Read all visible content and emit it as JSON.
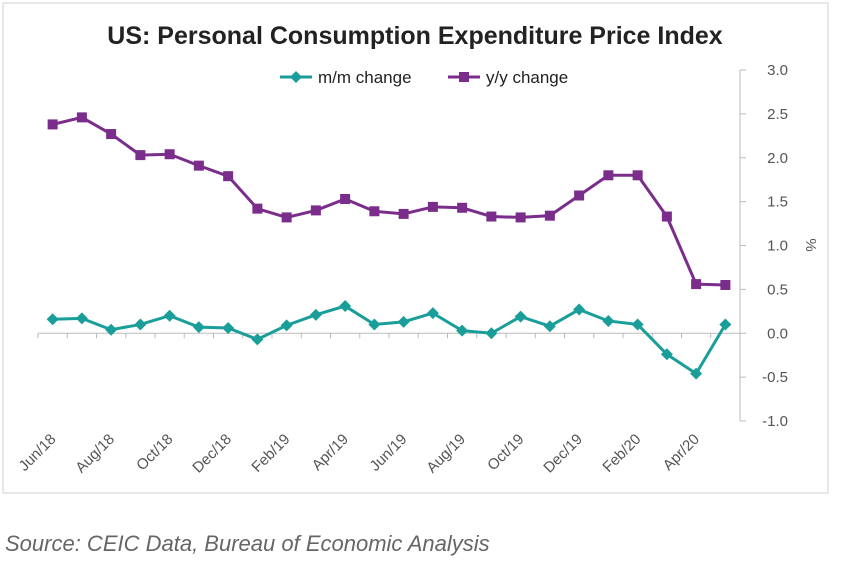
{
  "chart_data": {
    "type": "line",
    "title": "US: Personal Consumption Expenditure Price Index",
    "y_label": "%",
    "source": "Source: CEIC Data, Bureau of Economic Analysis",
    "categories": [
      "Jun/18",
      null,
      "Aug/18",
      null,
      "Oct/18",
      null,
      "Dec/18",
      null,
      "Feb/19",
      null,
      "Apr/19",
      null,
      "Jun/19",
      null,
      "Aug/19",
      null,
      "Oct/19",
      null,
      "Dec/19",
      null,
      "Feb/20",
      null,
      "Apr/20",
      null
    ],
    "series": [
      {
        "name": "m/m change",
        "color": "#1a9e9a",
        "marker": "diamond",
        "values": [
          0.16,
          0.17,
          0.04,
          0.1,
          0.2,
          0.07,
          0.06,
          -0.07,
          0.09,
          0.21,
          0.31,
          0.1,
          0.13,
          0.23,
          0.03,
          0.0,
          0.19,
          0.08,
          0.27,
          0.14,
          0.1,
          -0.24,
          -0.46,
          0.1
        ]
      },
      {
        "name": "y/y change",
        "color": "#7b2d8b",
        "marker": "square",
        "values": [
          2.38,
          2.46,
          2.27,
          2.03,
          2.04,
          1.91,
          1.79,
          1.42,
          1.32,
          1.4,
          1.53,
          1.39,
          1.36,
          1.44,
          1.43,
          1.33,
          1.32,
          1.34,
          1.57,
          1.8,
          1.8,
          1.33,
          0.56,
          0.55
        ]
      }
    ],
    "ylim": [
      -1,
      3
    ],
    "yticks": [
      {
        "value": -1,
        "label": "-1.0"
      },
      {
        "value": -0.5,
        "label": "-0.5"
      },
      {
        "value": 0,
        "label": "0.0"
      },
      {
        "value": 0.5,
        "label": "0.5"
      },
      {
        "value": 1,
        "label": "1.0"
      },
      {
        "value": 1.5,
        "label": "1.5"
      },
      {
        "value": 2,
        "label": "2.0"
      },
      {
        "value": 2.5,
        "label": "2.5"
      },
      {
        "value": 3,
        "label": "3.0"
      }
    ],
    "y_axis_side": "right",
    "legend": "top"
  }
}
